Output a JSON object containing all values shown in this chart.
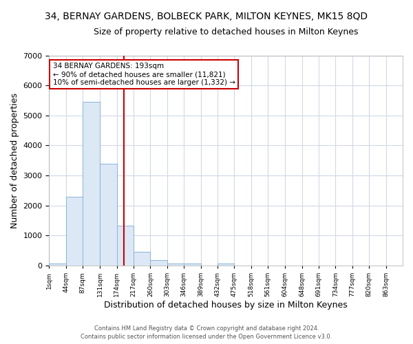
{
  "title": "34, BERNAY GARDENS, BOLBECK PARK, MILTON KEYNES, MK15 8QD",
  "subtitle": "Size of property relative to detached houses in Milton Keynes",
  "xlabel": "Distribution of detached houses by size in Milton Keynes",
  "ylabel": "Number of detached properties",
  "bar_values": [
    75,
    2300,
    5450,
    3400,
    1340,
    460,
    175,
    80,
    70,
    0,
    75,
    0,
    0,
    0,
    0,
    0,
    0,
    0,
    0,
    0,
    0
  ],
  "bin_edges": [
    1,
    44,
    87,
    131,
    174,
    217,
    260,
    303,
    346,
    389,
    432,
    475,
    518,
    561,
    604,
    648,
    691,
    734,
    777,
    820,
    863,
    906
  ],
  "tick_labels": [
    "1sqm",
    "44sqm",
    "87sqm",
    "131sqm",
    "174sqm",
    "217sqm",
    "260sqm",
    "303sqm",
    "346sqm",
    "389sqm",
    "432sqm",
    "475sqm",
    "518sqm",
    "561sqm",
    "604sqm",
    "648sqm",
    "691sqm",
    "734sqm",
    "777sqm",
    "820sqm",
    "863sqm"
  ],
  "bar_color": "#dce8f5",
  "bar_edge_color": "#8ab4d4",
  "vline_x": 193,
  "vline_color": "#cc0000",
  "annotation_title": "34 BERNAY GARDENS: 193sqm",
  "annotation_line1": "← 90% of detached houses are smaller (11,821)",
  "annotation_line2": "10% of semi-detached houses are larger (1,332) →",
  "annotation_box_color": "#ffffff",
  "annotation_box_edge": "#cc0000",
  "ylim": [
    0,
    7000
  ],
  "footer1": "Contains HM Land Registry data © Crown copyright and database right 2024.",
  "footer2": "Contains public sector information licensed under the Open Government Licence v3.0.",
  "bg_color": "#ffffff",
  "plot_bg_color": "#ffffff",
  "grid_color": "#d0d8e8",
  "title_fontsize": 10,
  "subtitle_fontsize": 9
}
